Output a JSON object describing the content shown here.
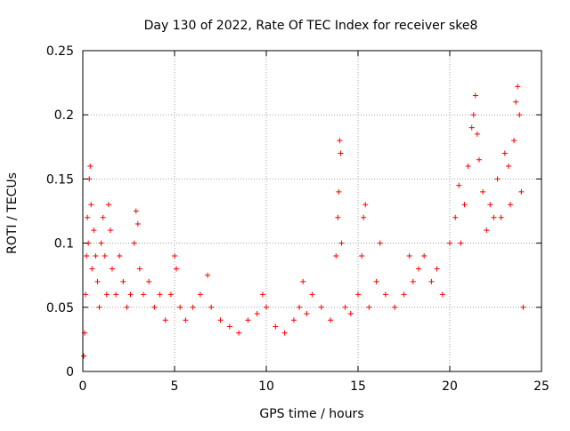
{
  "chart_data": {
    "type": "scatter",
    "title": "Day 130 of 2022, Rate Of TEC Index for receiver ske8",
    "xlabel": "GPS time / hours",
    "ylabel": "ROTI / TECUs",
    "xlim": [
      0,
      25
    ],
    "ylim": [
      0,
      0.25
    ],
    "x_ticks": [
      0,
      5,
      10,
      15,
      20,
      25
    ],
    "x_tick_labels": [
      "0",
      "5",
      "10",
      "15",
      "20",
      "25"
    ],
    "y_ticks": [
      0,
      0.05,
      0.1,
      0.15,
      0.2,
      0.25
    ],
    "y_tick_labels": [
      "0",
      "0.05",
      "0.1",
      "0.15",
      "0.2",
      "0.25"
    ],
    "grid": true,
    "marker": "+",
    "color": "#ff0000",
    "series": [
      {
        "points": [
          [
            0.05,
            0.012
          ],
          [
            0.1,
            0.03
          ],
          [
            0.15,
            0.06
          ],
          [
            0.2,
            0.09
          ],
          [
            0.25,
            0.12
          ],
          [
            0.3,
            0.1
          ],
          [
            0.35,
            0.15
          ],
          [
            0.4,
            0.16
          ],
          [
            0.45,
            0.13
          ],
          [
            0.5,
            0.08
          ],
          [
            0.6,
            0.11
          ],
          [
            0.7,
            0.09
          ],
          [
            0.8,
            0.07
          ],
          [
            0.9,
            0.05
          ],
          [
            1.0,
            0.1
          ],
          [
            1.1,
            0.12
          ],
          [
            1.2,
            0.09
          ],
          [
            1.3,
            0.06
          ],
          [
            1.4,
            0.13
          ],
          [
            1.5,
            0.11
          ],
          [
            1.6,
            0.08
          ],
          [
            1.8,
            0.06
          ],
          [
            2.0,
            0.09
          ],
          [
            2.2,
            0.07
          ],
          [
            2.4,
            0.05
          ],
          [
            2.6,
            0.06
          ],
          [
            2.8,
            0.1
          ],
          [
            2.9,
            0.125
          ],
          [
            3.0,
            0.115
          ],
          [
            3.1,
            0.08
          ],
          [
            3.3,
            0.06
          ],
          [
            3.6,
            0.07
          ],
          [
            3.9,
            0.05
          ],
          [
            4.2,
            0.06
          ],
          [
            4.5,
            0.04
          ],
          [
            4.8,
            0.06
          ],
          [
            5.0,
            0.09
          ],
          [
            5.1,
            0.08
          ],
          [
            5.3,
            0.05
          ],
          [
            5.6,
            0.04
          ],
          [
            6.0,
            0.05
          ],
          [
            6.4,
            0.06
          ],
          [
            6.8,
            0.075
          ],
          [
            7.0,
            0.05
          ],
          [
            7.5,
            0.04
          ],
          [
            8.0,
            0.035
          ],
          [
            8.5,
            0.03
          ],
          [
            9.0,
            0.04
          ],
          [
            9.5,
            0.045
          ],
          [
            9.8,
            0.06
          ],
          [
            10.0,
            0.05
          ],
          [
            10.5,
            0.035
          ],
          [
            11.0,
            0.03
          ],
          [
            11.5,
            0.04
          ],
          [
            11.8,
            0.05
          ],
          [
            12.0,
            0.07
          ],
          [
            12.2,
            0.045
          ],
          [
            12.5,
            0.06
          ],
          [
            13.0,
            0.05
          ],
          [
            13.5,
            0.04
          ],
          [
            13.8,
            0.09
          ],
          [
            13.9,
            0.12
          ],
          [
            13.95,
            0.14
          ],
          [
            14.0,
            0.18
          ],
          [
            14.05,
            0.17
          ],
          [
            14.1,
            0.1
          ],
          [
            14.3,
            0.05
          ],
          [
            14.6,
            0.045
          ],
          [
            15.0,
            0.06
          ],
          [
            15.2,
            0.09
          ],
          [
            15.3,
            0.12
          ],
          [
            15.4,
            0.13
          ],
          [
            15.6,
            0.05
          ],
          [
            16.0,
            0.07
          ],
          [
            16.2,
            0.1
          ],
          [
            16.5,
            0.06
          ],
          [
            17.0,
            0.05
          ],
          [
            17.5,
            0.06
          ],
          [
            17.8,
            0.09
          ],
          [
            18.0,
            0.07
          ],
          [
            18.3,
            0.08
          ],
          [
            18.6,
            0.09
          ],
          [
            19.0,
            0.07
          ],
          [
            19.3,
            0.08
          ],
          [
            19.6,
            0.06
          ],
          [
            20.0,
            0.1
          ],
          [
            20.3,
            0.12
          ],
          [
            20.5,
            0.145
          ],
          [
            20.6,
            0.1
          ],
          [
            20.8,
            0.13
          ],
          [
            21.0,
            0.16
          ],
          [
            21.2,
            0.19
          ],
          [
            21.3,
            0.2
          ],
          [
            21.4,
            0.215
          ],
          [
            21.5,
            0.185
          ],
          [
            21.6,
            0.165
          ],
          [
            21.8,
            0.14
          ],
          [
            22.0,
            0.11
          ],
          [
            22.2,
            0.13
          ],
          [
            22.4,
            0.12
          ],
          [
            22.6,
            0.15
          ],
          [
            22.8,
            0.12
          ],
          [
            23.0,
            0.17
          ],
          [
            23.2,
            0.16
          ],
          [
            23.3,
            0.13
          ],
          [
            23.5,
            0.18
          ],
          [
            23.6,
            0.21
          ],
          [
            23.7,
            0.222
          ],
          [
            23.8,
            0.2
          ],
          [
            23.9,
            0.14
          ],
          [
            24.0,
            0.05
          ]
        ]
      }
    ]
  }
}
